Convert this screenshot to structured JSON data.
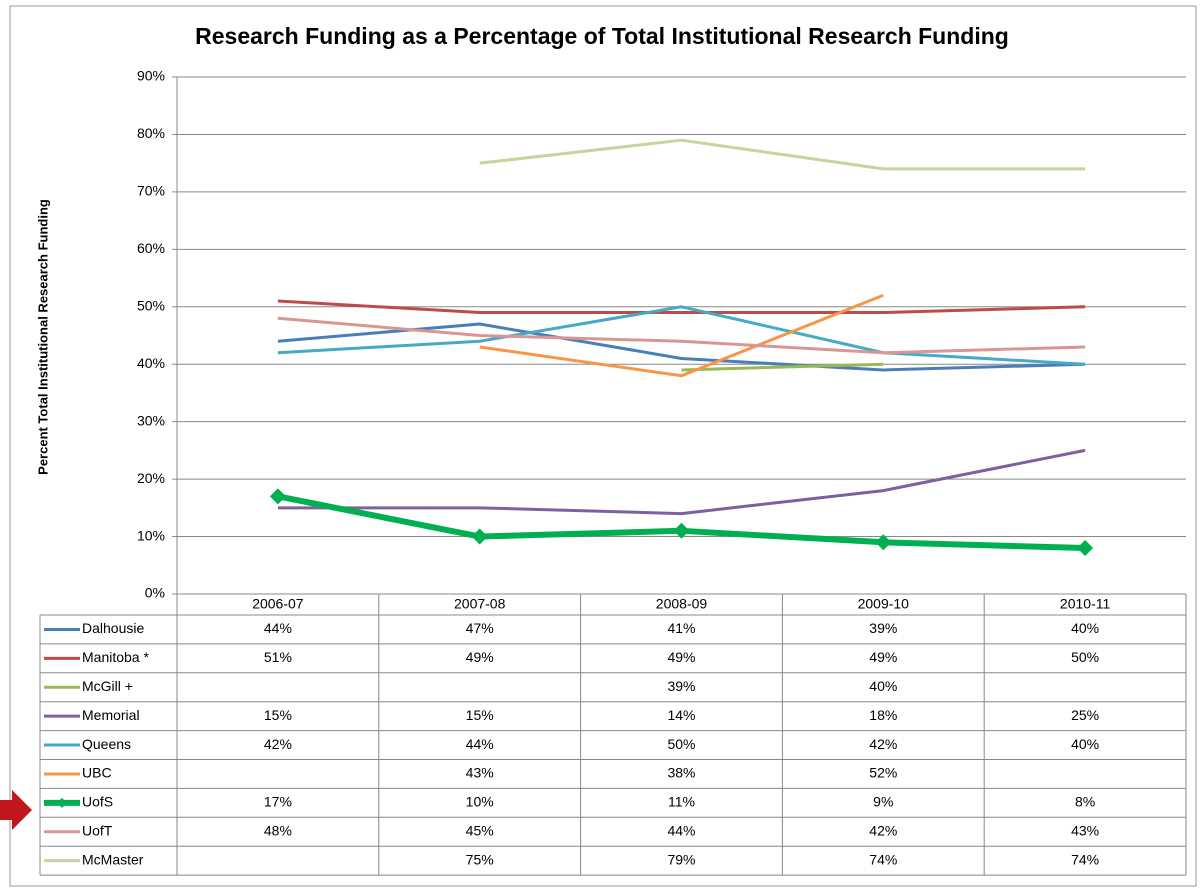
{
  "chart_data": {
    "type": "line",
    "title": "Research Funding as a Percentage of Total Institutional Research Funding",
    "y_label": "Percent Total Institutional Research Funding",
    "categories": [
      "2006-07",
      "2007-08",
      "2008-09",
      "2009-10",
      "2010-11"
    ],
    "ylim": [
      0,
      90
    ],
    "yticks": [
      {
        "value": 0,
        "label": "0%"
      },
      {
        "value": 10,
        "label": "10%"
      },
      {
        "value": 20,
        "label": "20%"
      },
      {
        "value": 30,
        "label": "30%"
      },
      {
        "value": 40,
        "label": "40%"
      },
      {
        "value": 50,
        "label": "50%"
      },
      {
        "value": 60,
        "label": "60%"
      },
      {
        "value": 70,
        "label": "70%"
      },
      {
        "value": 80,
        "label": "80%"
      },
      {
        "value": 90,
        "label": "90%"
      }
    ],
    "grid": true,
    "series": [
      {
        "name": "Dalhousie",
        "color": "#4a7ebb",
        "values": [
          44,
          47,
          41,
          39,
          40
        ],
        "value_labels": [
          "44%",
          "47%",
          "41%",
          "39%",
          "40%"
        ]
      },
      {
        "name": "Manitoba *",
        "color": "#be4b48",
        "values": [
          51,
          49,
          49,
          49,
          50
        ],
        "value_labels": [
          "51%",
          "49%",
          "49%",
          "49%",
          "50%"
        ]
      },
      {
        "name": "McGill +",
        "color": "#98b954",
        "values": [
          null,
          null,
          39,
          40,
          null
        ],
        "value_labels": [
          null,
          null,
          "39%",
          "40%",
          null
        ]
      },
      {
        "name": "Memorial",
        "color": "#7d60a0",
        "values": [
          15,
          15,
          14,
          18,
          25
        ],
        "value_labels": [
          "15%",
          "15%",
          "14%",
          "18%",
          "25%"
        ]
      },
      {
        "name": "Queens",
        "color": "#46aac5",
        "values": [
          42,
          44,
          50,
          42,
          40
        ],
        "value_labels": [
          "42%",
          "44%",
          "50%",
          "42%",
          "40%"
        ]
      },
      {
        "name": "UBC",
        "color": "#f79646",
        "values": [
          null,
          43,
          38,
          52,
          null
        ],
        "value_labels": [
          null,
          "43%",
          "38%",
          "52%",
          null
        ]
      },
      {
        "name": "UofS",
        "color": "#00b050",
        "linewidth": 6,
        "marker": "diamond",
        "values": [
          17,
          10,
          11,
          9,
          8
        ],
        "value_labels": [
          "17%",
          "10%",
          "11%",
          "9%",
          "8%"
        ]
      },
      {
        "name": "UofT",
        "color": "#d99694",
        "values": [
          48,
          45,
          44,
          42,
          43
        ],
        "value_labels": [
          "48%",
          "45%",
          "44%",
          "42%",
          "43%"
        ]
      },
      {
        "name": "McMaster",
        "color": "#c3d69b",
        "values": [
          null,
          75,
          79,
          74,
          74
        ],
        "value_labels": [
          null,
          "75%",
          "79%",
          "74%",
          "74%"
        ]
      }
    ]
  }
}
